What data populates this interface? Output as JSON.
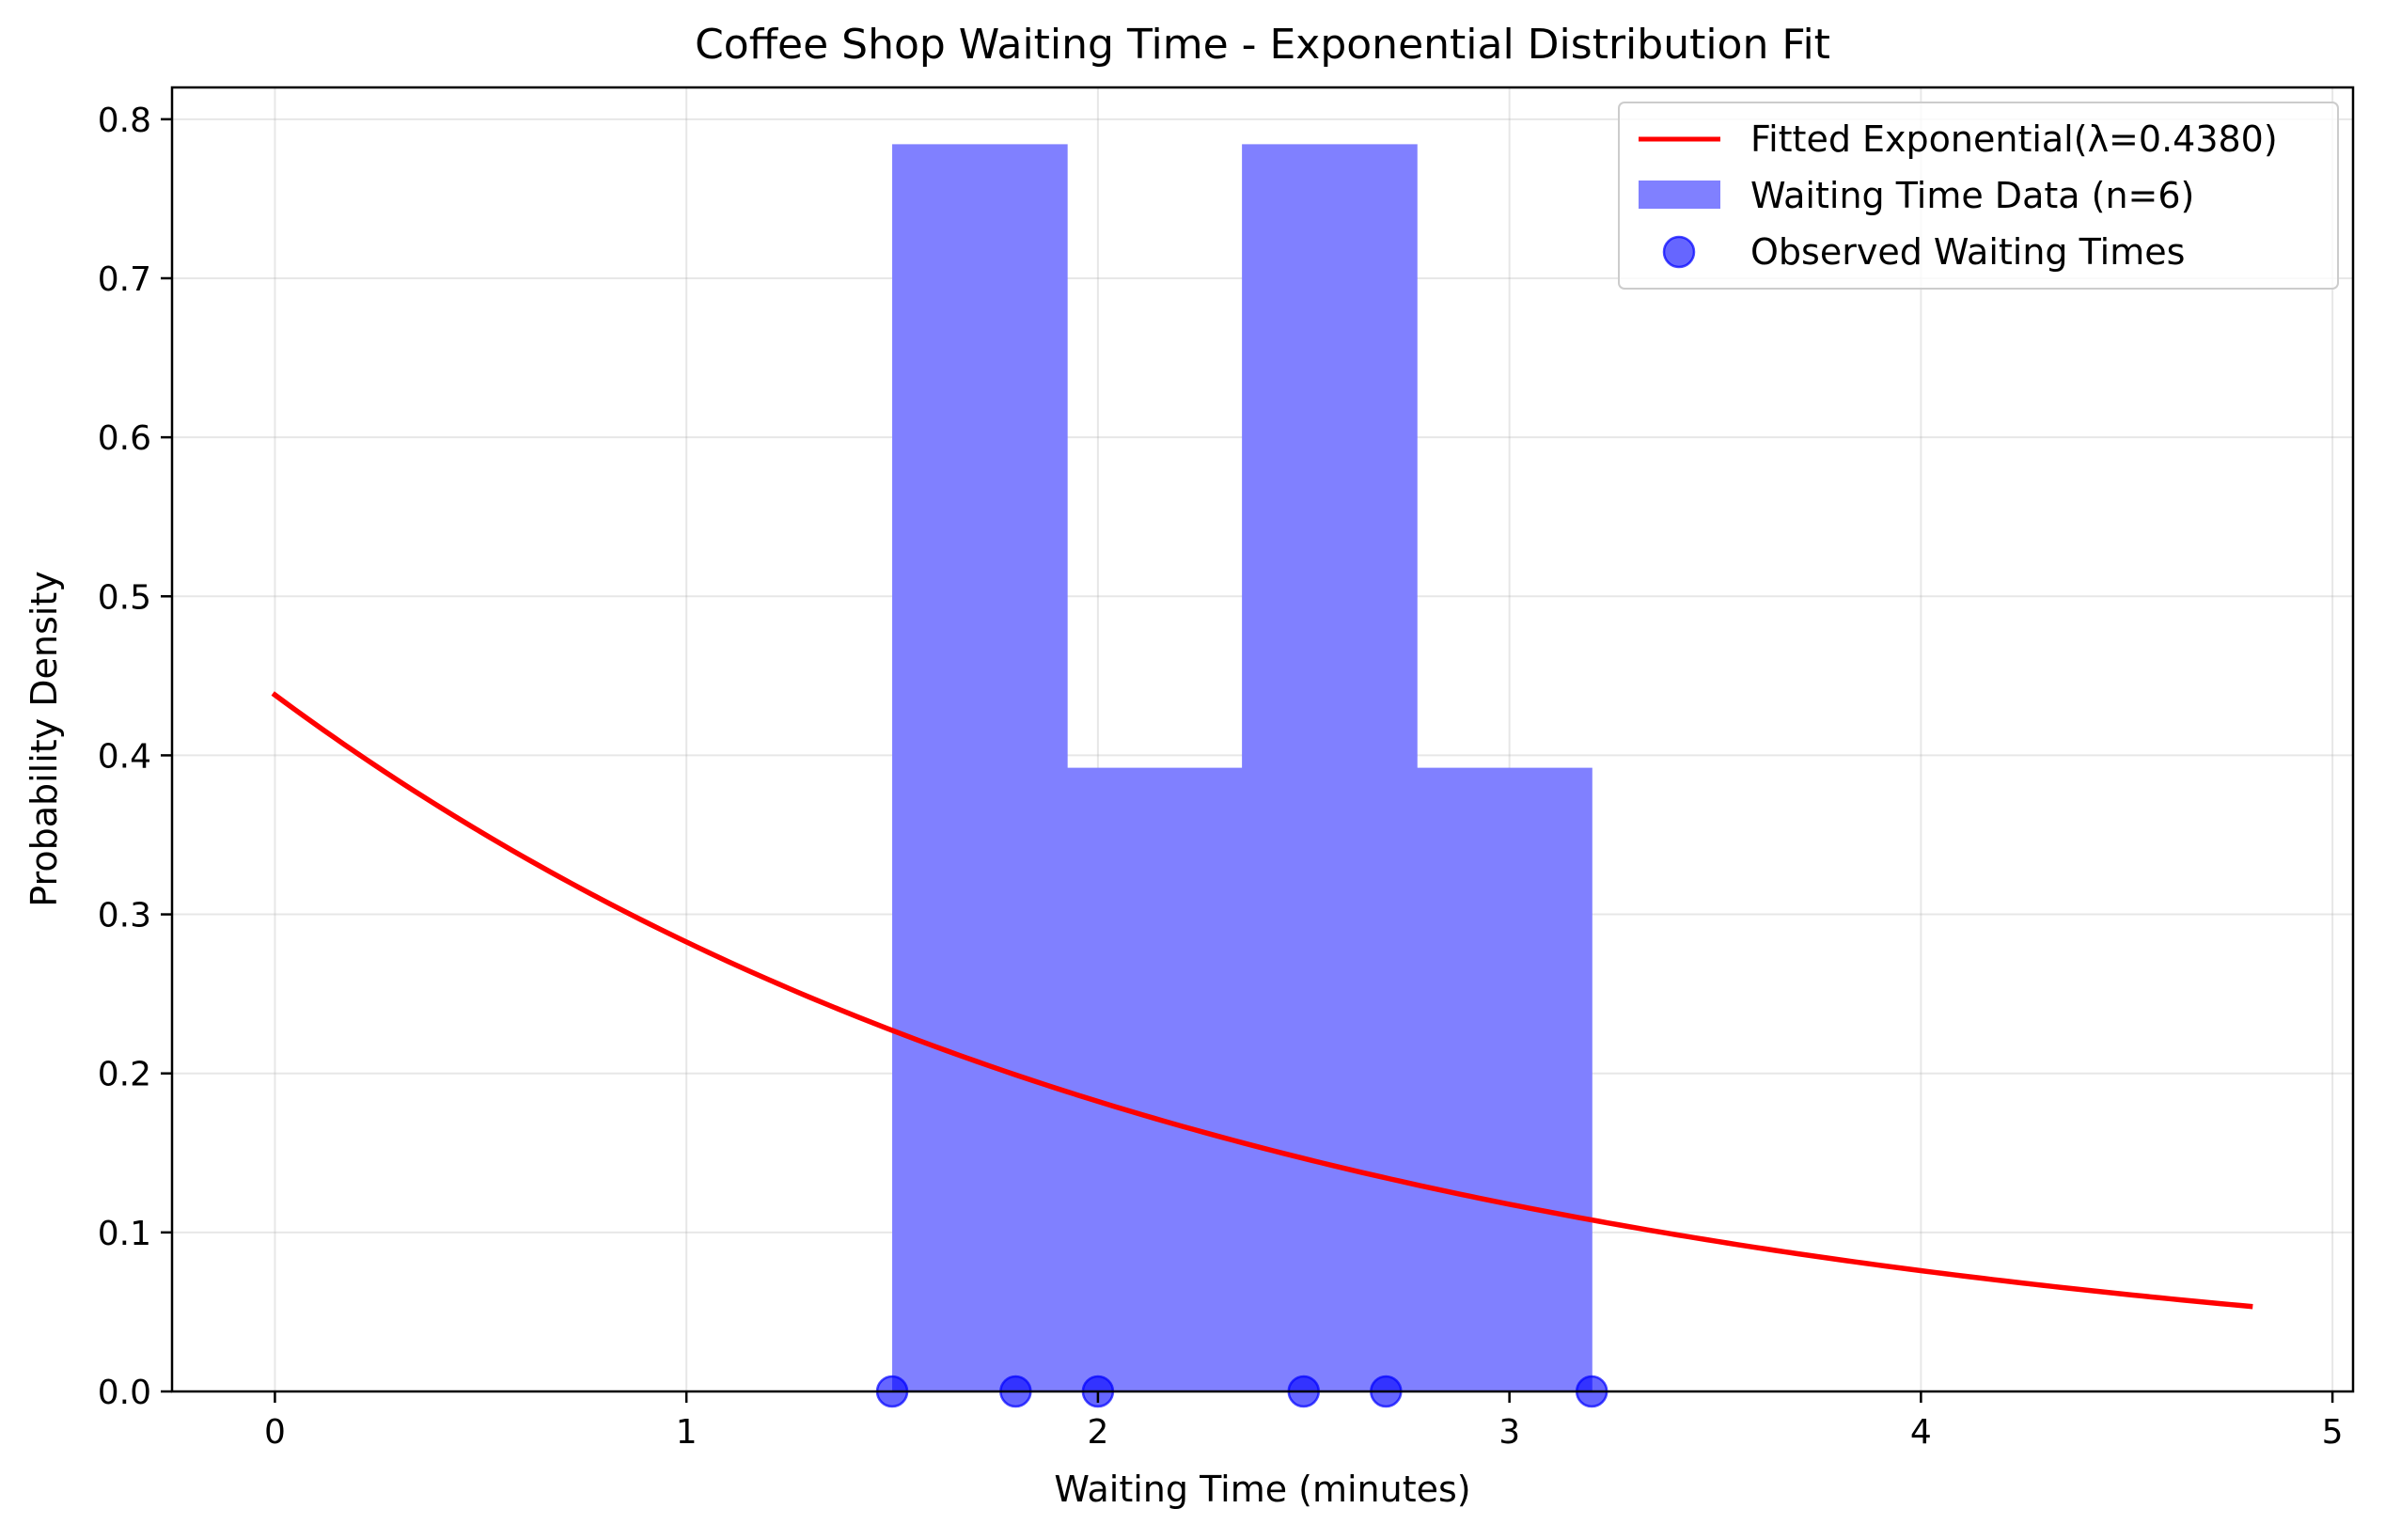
{
  "chart_data": {
    "type": "histogram",
    "title": "Coffee Shop Waiting Time - Exponential Distribution Fit",
    "xlabel": "Waiting Time (minutes)",
    "ylabel": "Probability Density",
    "xlim": [
      -0.25,
      5.05
    ],
    "ylim": [
      0,
      0.82
    ],
    "xticks": [
      0,
      1,
      2,
      3,
      4,
      5
    ],
    "xtick_labels": [
      "0",
      "1",
      "2",
      "3",
      "4",
      "5"
    ],
    "yticks": [
      0.0,
      0.1,
      0.2,
      0.3,
      0.4,
      0.5,
      0.6,
      0.7,
      0.8
    ],
    "ytick_labels": [
      "0.0",
      "0.1",
      "0.2",
      "0.3",
      "0.4",
      "0.5",
      "0.6",
      "0.7",
      "0.8"
    ],
    "grid": true,
    "legend_position": "top-right",
    "histogram": {
      "name": "Waiting Time Data (n=6)",
      "color": "#8080ff",
      "bins": [
        {
          "x0": 1.5,
          "x1": 1.925,
          "density": 0.7843
        },
        {
          "x0": 1.925,
          "x1": 2.35,
          "density": 0.3922
        },
        {
          "x0": 2.35,
          "x1": 2.775,
          "density": 0.7843
        },
        {
          "x0": 2.775,
          "x1": 3.2,
          "density": 0.3922
        }
      ]
    },
    "curve": {
      "name": "Fitted Exponential(λ=0.4380)",
      "color": "#ff0000",
      "lambda": 0.438,
      "x_min": 0,
      "x_max": 4.8
    },
    "points": {
      "name": "Observed Waiting Times",
      "color": "#0000ff",
      "x": [
        1.5,
        1.8,
        2.0,
        2.5,
        2.7,
        3.2
      ],
      "y": [
        0,
        0,
        0,
        0,
        0,
        0
      ]
    }
  }
}
